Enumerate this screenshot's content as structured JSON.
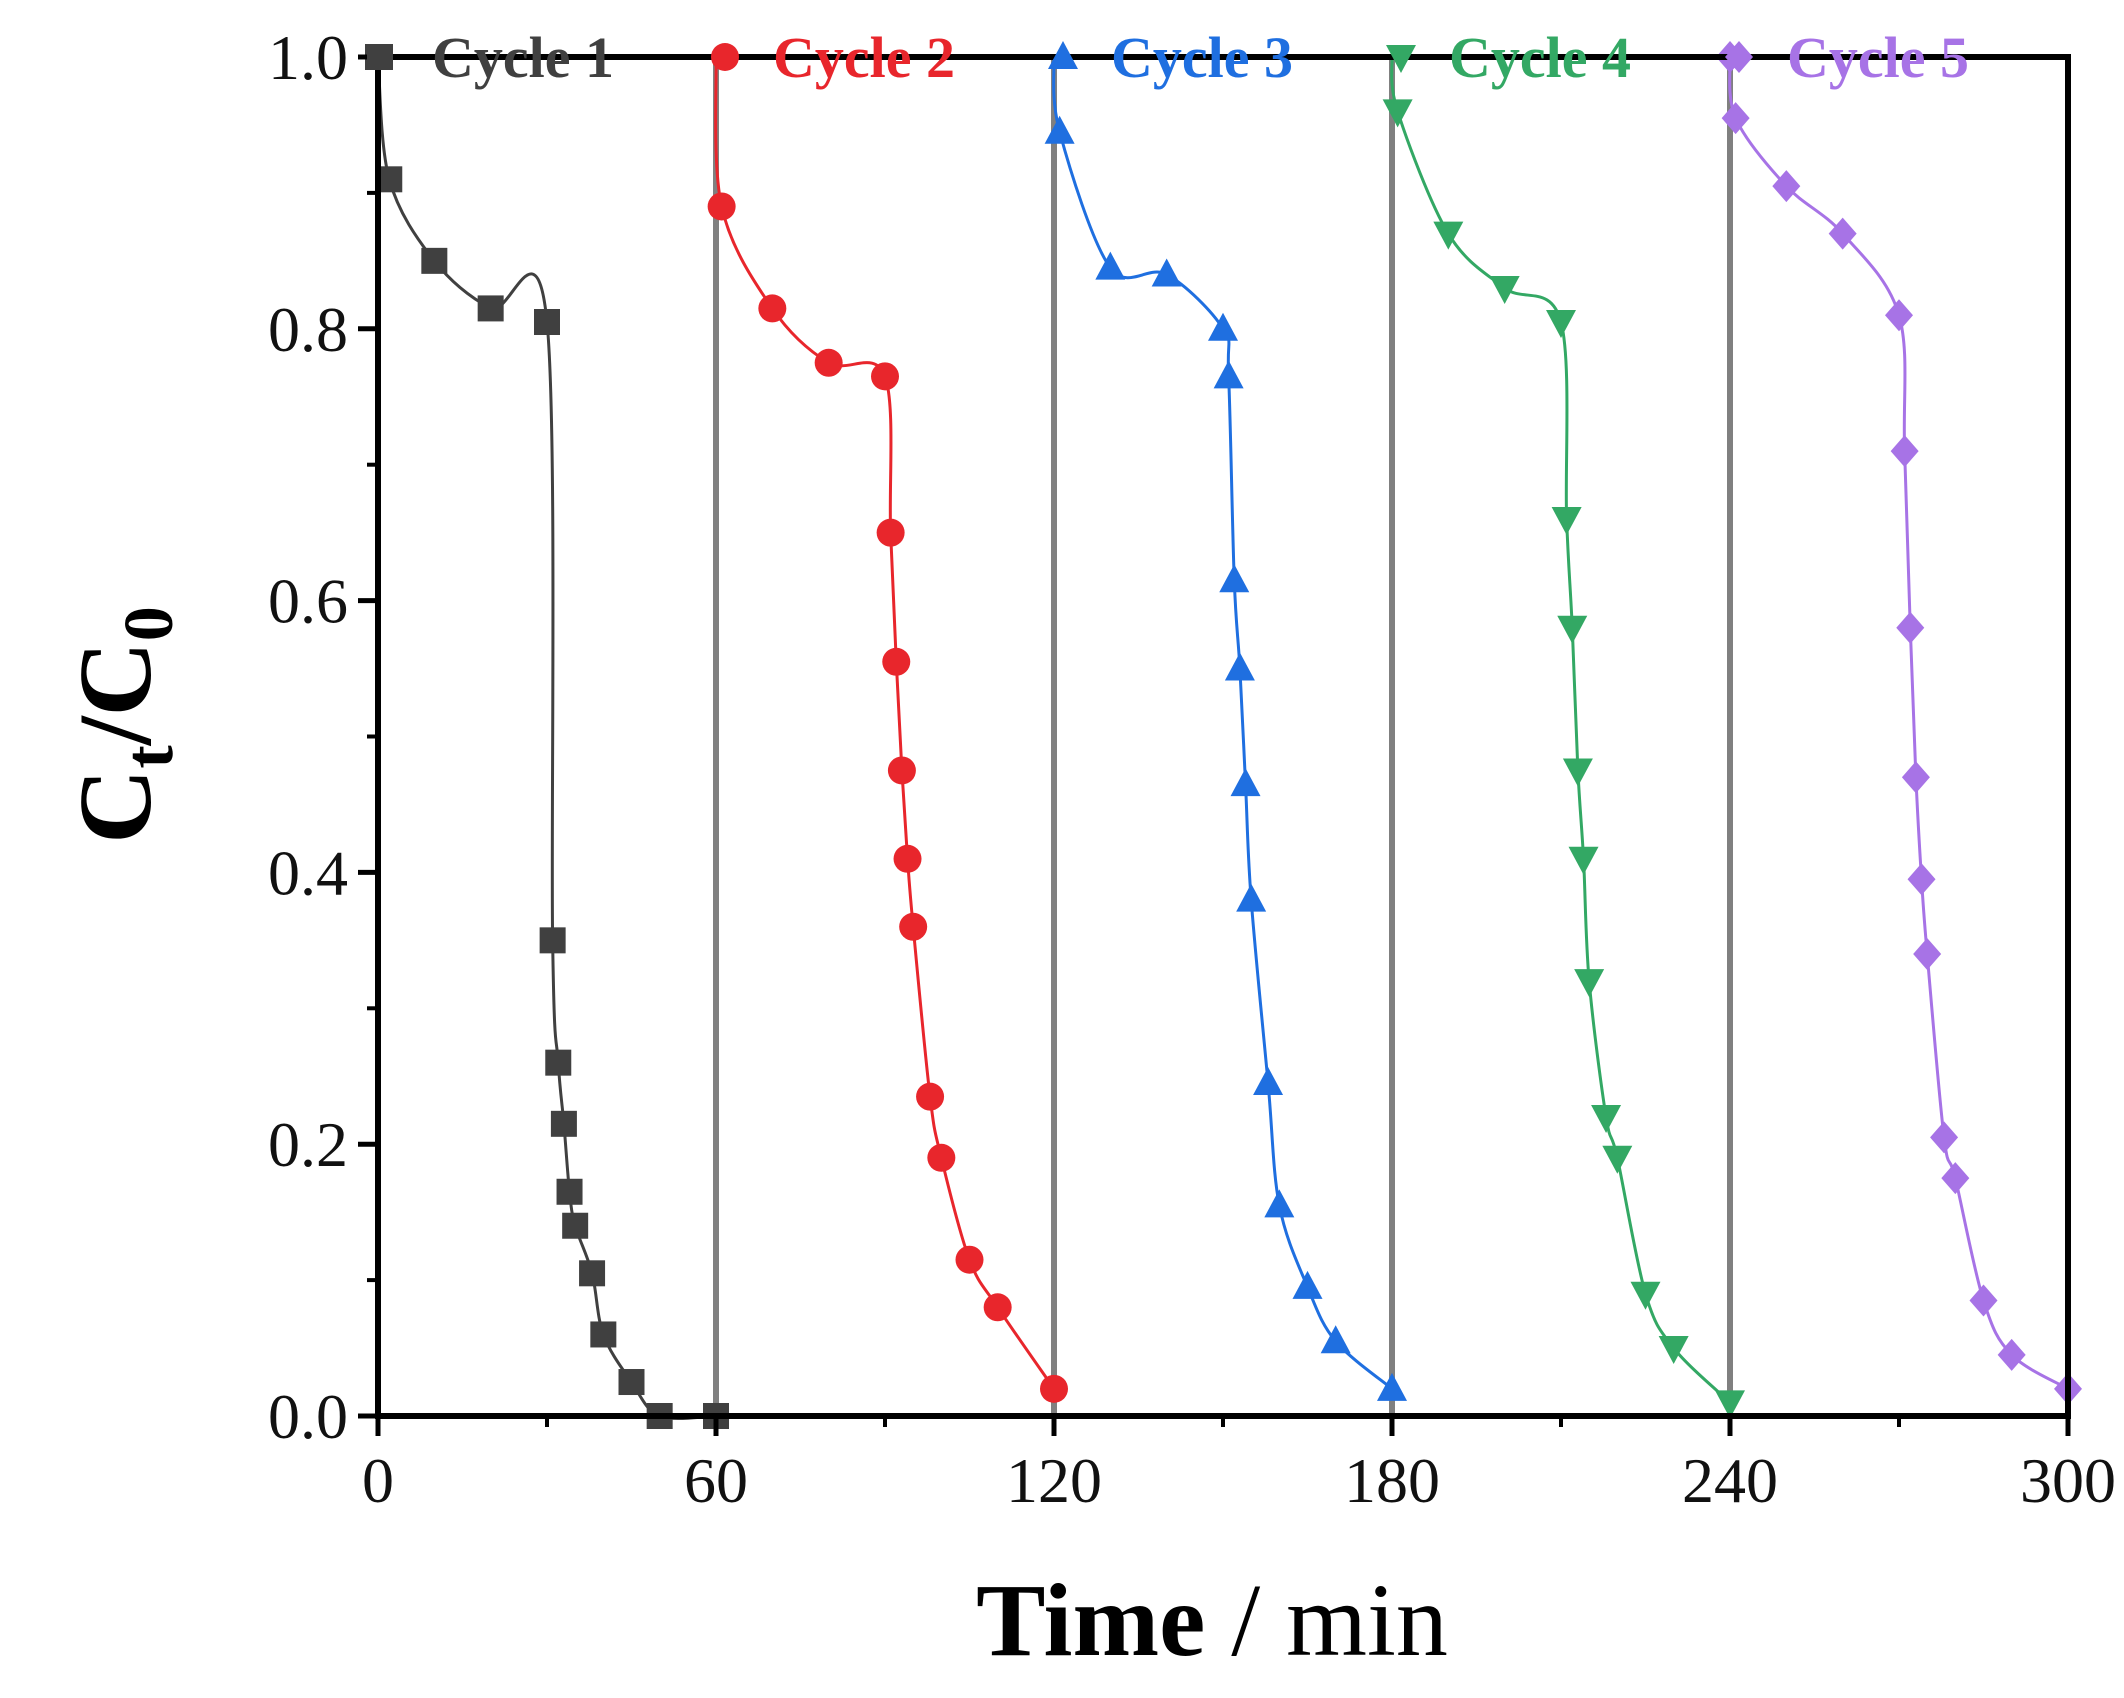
{
  "chart_data": {
    "type": "line",
    "title": "",
    "xlabel": {
      "bold": "Time",
      "normal": " / min"
    },
    "ylabel": {
      "main": "C",
      "sub_t": "t",
      "slash": "/C",
      "sub_0": "0"
    },
    "xlim": [
      0,
      300
    ],
    "ylim": [
      0,
      1.0
    ],
    "xticks": [
      0,
      60,
      120,
      180,
      240,
      300
    ],
    "xtick_labels": [
      "0",
      "60",
      "120",
      "180",
      "240",
      "300"
    ],
    "yticks": [
      0.0,
      0.2,
      0.4,
      0.6,
      0.8,
      1.0
    ],
    "ytick_labels": [
      "0.0",
      "0.2",
      "0.4",
      "0.6",
      "0.8",
      "1.0"
    ],
    "grid": false,
    "legend_position": "top, inline per cycle",
    "separators_x": [
      60,
      120,
      180,
      240
    ],
    "separator_color": "#808080",
    "series": [
      {
        "name": "Cycle 1",
        "color": "#404040",
        "marker": "square",
        "x": [
          0,
          2,
          10,
          20,
          30,
          31,
          32,
          33,
          34,
          35,
          38,
          40,
          45,
          50,
          60
        ],
        "y": [
          1.0,
          0.91,
          0.85,
          0.815,
          0.805,
          0.35,
          0.26,
          0.215,
          0.165,
          0.14,
          0.105,
          0.06,
          0.025,
          0.0,
          0.0
        ]
      },
      {
        "name": "Cycle 2",
        "color": "#e8262c",
        "marker": "circle",
        "x": [
          60,
          61,
          70,
          80,
          90,
          91,
          92,
          93,
          94,
          95,
          98,
          100,
          105,
          110,
          120
        ],
        "y": [
          1.0,
          0.89,
          0.815,
          0.775,
          0.765,
          0.65,
          0.555,
          0.475,
          0.41,
          0.36,
          0.235,
          0.19,
          0.115,
          0.08,
          0.02
        ]
      },
      {
        "name": "Cycle 3",
        "color": "#1f6fe0",
        "marker": "triangle-up",
        "x": [
          120,
          121,
          130,
          140,
          150,
          151,
          152,
          153,
          154,
          155,
          158,
          160,
          165,
          170,
          180
        ],
        "y": [
          1.0,
          0.945,
          0.845,
          0.84,
          0.8,
          0.765,
          0.615,
          0.55,
          0.465,
          0.38,
          0.245,
          0.155,
          0.095,
          0.055,
          0.02
        ]
      },
      {
        "name": "Cycle 4",
        "color": "#33a864",
        "marker": "triangle-down",
        "x": [
          180,
          181,
          190,
          200,
          210,
          211,
          212,
          213,
          214,
          215,
          218,
          220,
          225,
          230,
          240
        ],
        "y": [
          1.0,
          0.96,
          0.87,
          0.83,
          0.805,
          0.66,
          0.58,
          0.475,
          0.41,
          0.32,
          0.22,
          0.19,
          0.09,
          0.05,
          0.01
        ]
      },
      {
        "name": "Cycle 5",
        "color": "#a773e6",
        "marker": "diamond",
        "x": [
          240,
          241,
          250,
          260,
          270,
          271,
          272,
          273,
          274,
          275,
          278,
          280,
          285,
          290,
          300
        ],
        "y": [
          1.0,
          0.955,
          0.905,
          0.87,
          0.81,
          0.71,
          0.58,
          0.47,
          0.395,
          0.34,
          0.205,
          0.175,
          0.085,
          0.045,
          0.02
        ]
      }
    ]
  }
}
